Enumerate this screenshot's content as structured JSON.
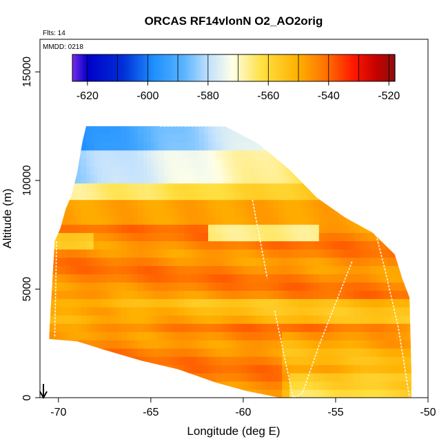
{
  "chart_data": {
    "type": "heatmap",
    "title": "ORCAS RF14vlonN O2_AO2orig",
    "annotations": {
      "flights": "Flts: 14",
      "date": "MMDD: 0218"
    },
    "xlabel": "Longitude (deg E)",
    "ylabel": "Altitude (m)",
    "xlim": [
      -71,
      -50
    ],
    "ylim": [
      0,
      16500
    ],
    "x_ticks": [
      -70,
      -65,
      -60,
      -55,
      -50
    ],
    "x_tick_labels": [
      "-70",
      "-65",
      "-60",
      "-55",
      "-50"
    ],
    "y_ticks": [
      0,
      5000,
      10000,
      15000
    ],
    "y_tick_labels": [
      "0",
      "5000",
      "10000",
      "15000"
    ],
    "colorbar": {
      "range": [
        -625,
        -518
      ],
      "ticks": [
        -620,
        -600,
        -580,
        -560,
        -540,
        -520
      ],
      "tick_labels": [
        "-620",
        "-600",
        "-580",
        "-560",
        "-540",
        "-520"
      ],
      "stops": [
        [
          -625,
          "#7a2be8"
        ],
        [
          -620,
          "#0000c8"
        ],
        [
          -608,
          "#0030d8"
        ],
        [
          -598,
          "#1e90ff"
        ],
        [
          -588,
          "#5ab4ff"
        ],
        [
          -580,
          "#bfe0ff"
        ],
        [
          -572,
          "#ffffe8"
        ],
        [
          -562,
          "#ffe040"
        ],
        [
          -550,
          "#ffb000"
        ],
        [
          -540,
          "#ff6a00"
        ],
        [
          -532,
          "#ff1a00"
        ],
        [
          -524,
          "#c40000"
        ],
        [
          -518,
          "#8b1010"
        ]
      ]
    },
    "field": {
      "lon_edges": [
        -70.5,
        -70.3,
        -70.1,
        -69.9,
        -69.6,
        -69.4,
        -69.2,
        -69.0,
        -68.8,
        -68.5,
        -68.3,
        -68.1,
        -67.9,
        -67.7,
        -67.4,
        -67.2,
        -67.0,
        -66.8,
        -66.6,
        -66.3,
        -66.1,
        -65.9,
        -65.7,
        -65.4,
        -65.2,
        -65.0,
        -64.8,
        -64.6,
        -64.3,
        -64.1,
        -63.9,
        -63.7,
        -63.5,
        -63.2,
        -63.0,
        -62.8,
        -62.6,
        -62.4,
        -62.1,
        -61.9,
        -61.7,
        -61.5,
        -61.2,
        -61.0,
        -60.8,
        -60.6,
        -60.4,
        -60.1,
        -59.9,
        -59.7,
        -59.5,
        -59.3,
        -59.0,
        -58.8,
        -58.6,
        -58.4,
        -58.1,
        -57.9,
        -57.7,
        -57.5,
        -57.3,
        -57.0,
        -56.8,
        -56.6,
        -56.4,
        -56.2,
        -55.9,
        -55.7,
        -55.5,
        -55.3,
        -55.1,
        -54.8,
        -54.6,
        -54.4,
        -54.2,
        -54.0,
        -53.7,
        -53.5,
        -53.3,
        -53.1,
        -52.8,
        -52.6,
        -52.4,
        -52.2,
        -52.0,
        -51.7,
        -51.5,
        -51.3,
        -51.1,
        -50.9
      ],
      "outline_top": [
        [
          -70.5,
          2900
        ],
        [
          -70.2,
          7200
        ],
        [
          -69.9,
          7800
        ],
        [
          -69.6,
          8700
        ],
        [
          -69.3,
          9300
        ],
        [
          -69.0,
          10300
        ],
        [
          -68.7,
          11800
        ],
        [
          -68.5,
          12500
        ],
        [
          -61.0,
          12500
        ],
        [
          -59.2,
          11700
        ],
        [
          -57.5,
          10500
        ],
        [
          -56.0,
          9200
        ],
        [
          -54.5,
          8300
        ],
        [
          -53.0,
          7600
        ],
        [
          -51.8,
          6600
        ],
        [
          -51.4,
          5500
        ],
        [
          -51.0,
          4600
        ],
        [
          -50.9,
          1200
        ]
      ],
      "outline_bottom": [
        [
          -70.5,
          2700
        ],
        [
          -69.0,
          2600
        ],
        [
          -67.5,
          2200
        ],
        [
          -65.5,
          1700
        ],
        [
          -63.5,
          1300
        ],
        [
          -61.5,
          700
        ],
        [
          -59.8,
          300
        ],
        [
          -58.0,
          0
        ],
        [
          -50.9,
          0
        ]
      ],
      "flight_track": [
        [
          [
            -70.1,
            7200
          ],
          [
            -70.2,
            2800
          ]
        ],
        [
          [
            -59.5,
            9100
          ],
          [
            -58.7,
            5500
          ]
        ],
        [
          [
            -58.3,
            4000
          ],
          [
            -57.3,
            0
          ],
          [
            -56.8,
            200
          ],
          [
            -55.9,
            2400
          ],
          [
            -54.1,
            6300
          ]
        ],
        [
          [
            -52.9,
            7800
          ],
          [
            -52.3,
            5800
          ],
          [
            -51.6,
            3200
          ],
          [
            -51.0,
            0
          ]
        ],
        [
          [
            -64.5,
            12500
          ],
          [
            -61.0,
            12500
          ]
        ]
      ]
    }
  }
}
